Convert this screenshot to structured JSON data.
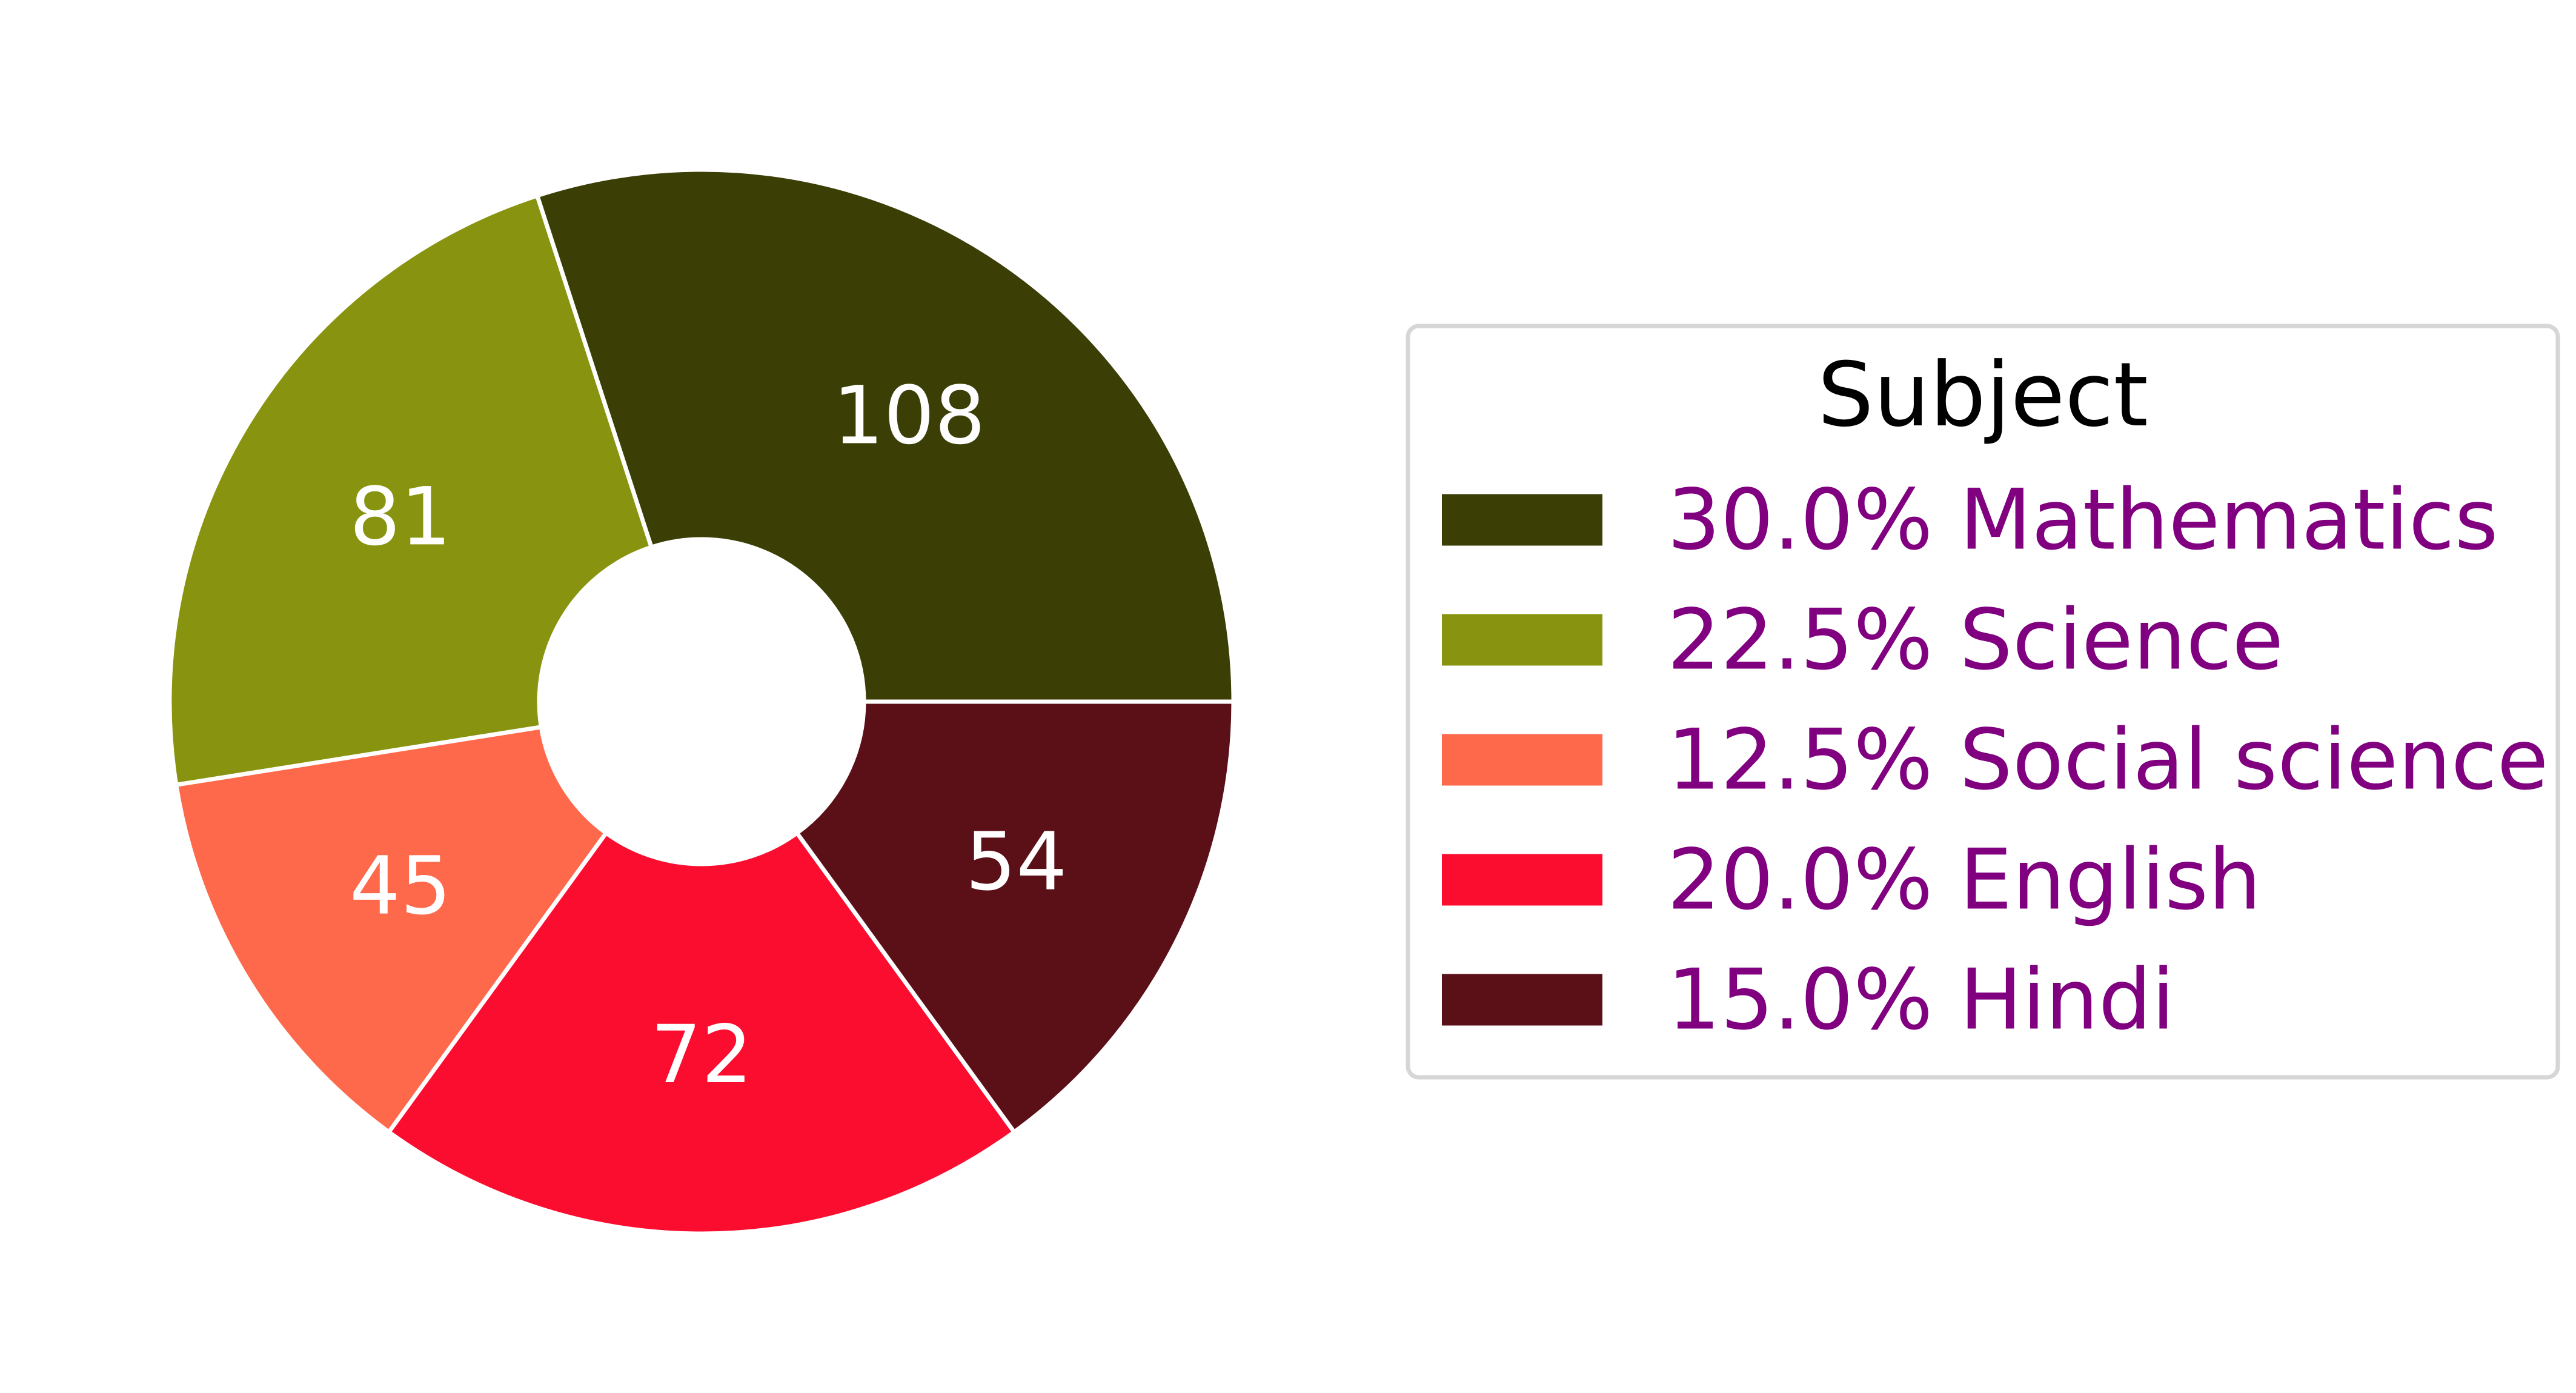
{
  "chart_data": {
    "type": "pie",
    "donut": true,
    "start_angle_deg": 0,
    "direction": "counterclockwise",
    "legend": {
      "title": "Subject",
      "placement": "right",
      "text_color": "#800080"
    },
    "slices": [
      {
        "label": "Mathematics",
        "value": 108,
        "percent_label": "30.0%",
        "color": "#3b3f06"
      },
      {
        "label": "Science",
        "value": 81,
        "percent_label": "22.5%",
        "color": "#88940f"
      },
      {
        "label": "Social science",
        "value": 45,
        "percent_label": "12.5%",
        "color": "#ff694b"
      },
      {
        "label": "English",
        "value": 72,
        "percent_label": "20.0%",
        "color": "#fb0d30"
      },
      {
        "label": "Hindi",
        "value": 54,
        "percent_label": "15.0%",
        "color": "#5b0f17"
      }
    ]
  }
}
